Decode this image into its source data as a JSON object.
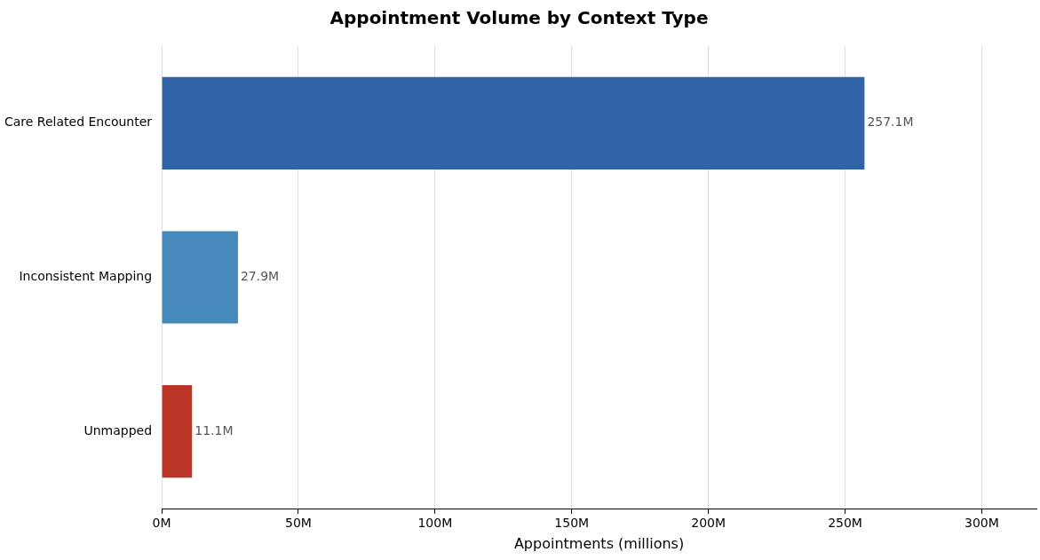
{
  "chart_data": {
    "type": "bar",
    "orientation": "horizontal",
    "title": "Appointment Volume by Context Type",
    "xlabel": "Appointments (millions)",
    "categories": [
      "Care Related Encounter",
      "Inconsistent Mapping",
      "Unmapped"
    ],
    "values": [
      257.1,
      27.9,
      11.1
    ],
    "colors": [
      "#3063a8",
      "#468abd",
      "#bb3626"
    ],
    "value_labels": [
      "257.1M",
      "27.9M",
      "11.1M"
    ],
    "xlim": [
      0,
      320
    ],
    "xticks": [
      {
        "value": 0,
        "label": "0M"
      },
      {
        "value": 50,
        "label": "50M"
      },
      {
        "value": 100,
        "label": "100M"
      },
      {
        "value": 150,
        "label": "150M"
      },
      {
        "value": 200,
        "label": "200M"
      },
      {
        "value": 250,
        "label": "250M"
      },
      {
        "value": 300,
        "label": "300M"
      }
    ],
    "grid": "x",
    "legend": false
  }
}
